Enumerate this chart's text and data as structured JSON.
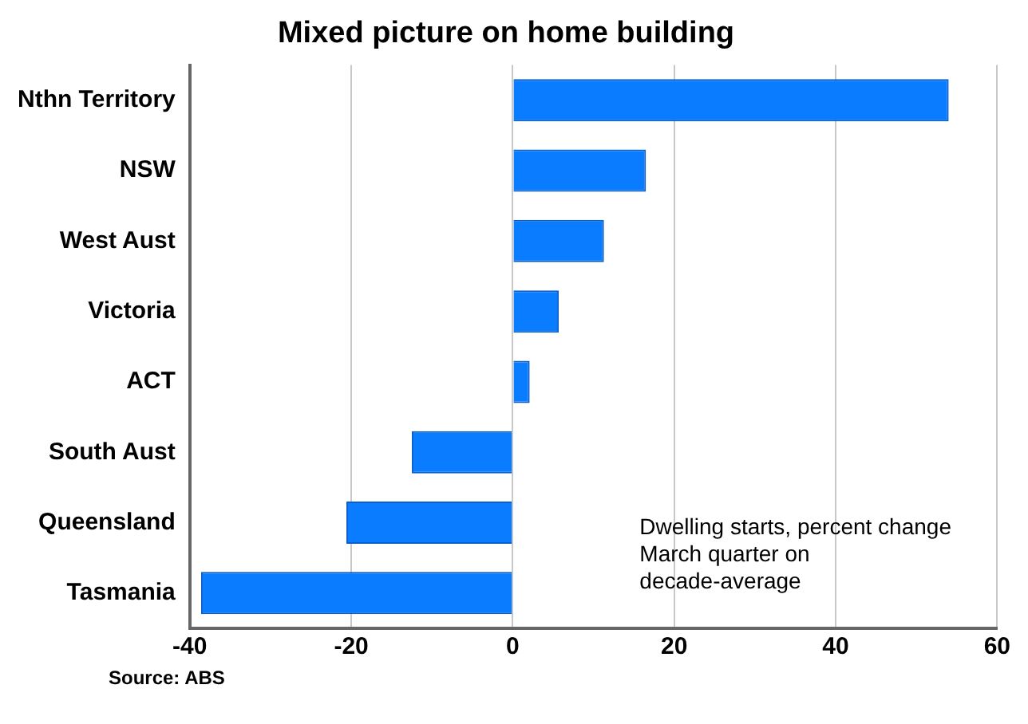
{
  "chart_data": {
    "type": "bar",
    "orientation": "horizontal",
    "title": "Mixed picture on home building",
    "categories": [
      "Nthn Territory",
      "NSW",
      "West Aust",
      "Victoria",
      "ACT",
      "South Aust",
      "Queensland",
      "Tasmania"
    ],
    "values": [
      54,
      16.5,
      11.3,
      5.7,
      2.1,
      -12.5,
      -20.6,
      -38.6
    ],
    "color": "#0a7cff",
    "xlim": [
      -40,
      60
    ],
    "xticks": [
      -40,
      -20,
      0,
      20,
      40,
      60
    ],
    "grid": "x",
    "annotations": [
      "Dwelling starts, percent change March quarter on decade-average",
      "Source: ABS"
    ]
  }
}
